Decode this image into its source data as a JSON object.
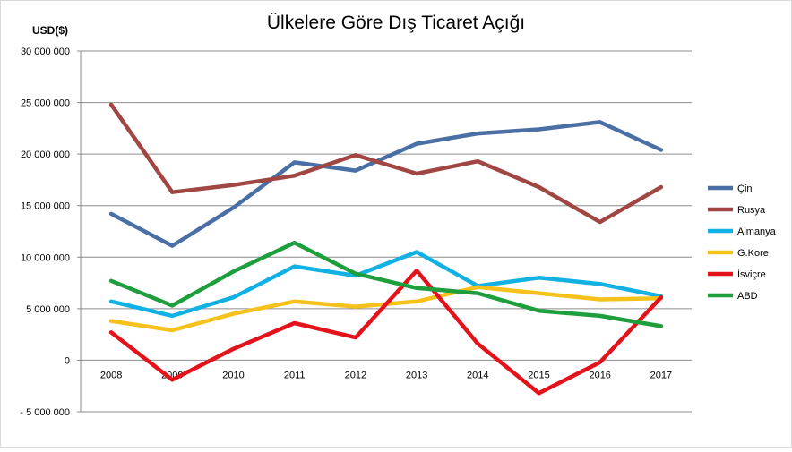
{
  "chart_data": {
    "type": "line",
    "title": "Ülkelere Göre Dış Ticaret Açığı",
    "ylabel": "USD($)",
    "xlabel": "",
    "ylim": [
      -5000000,
      30000000
    ],
    "ytick_values": [
      30000000,
      25000000,
      20000000,
      15000000,
      10000000,
      5000000,
      0,
      -5000000
    ],
    "ytick_labels": [
      "30 000 000",
      "25 000 000",
      "20 000 000",
      "15 000 000",
      "10 000 000",
      "5 000 000",
      "0",
      "- 5 000 000"
    ],
    "categories": [
      "2008",
      "2009",
      "2010",
      "2011",
      "2012",
      "2013",
      "2014",
      "2015",
      "2016",
      "2017"
    ],
    "grid": true,
    "legend_position": "right",
    "series": [
      {
        "name": "Çin",
        "color": "#4a6fa5",
        "values": [
          14200000,
          11100000,
          14800000,
          19200000,
          18400000,
          21000000,
          22000000,
          22400000,
          23100000,
          20400000
        ]
      },
      {
        "name": "Rusya",
        "color": "#a04743",
        "values": [
          24800000,
          16300000,
          17000000,
          17900000,
          19900000,
          18100000,
          19300000,
          16800000,
          13400000,
          16800000
        ]
      },
      {
        "name": "Almanya",
        "color": "#12b1e3",
        "values": [
          5700000,
          4300000,
          6100000,
          9100000,
          8200000,
          10500000,
          7200000,
          8000000,
          7400000,
          6200000
        ]
      },
      {
        "name": "G.Kore",
        "color": "#f5c21b",
        "values": [
          3800000,
          2900000,
          4500000,
          5700000,
          5200000,
          5700000,
          7100000,
          6500000,
          5900000,
          6000000
        ]
      },
      {
        "name": "İsviçre",
        "color": "#e4121a",
        "values": [
          2700000,
          -1900000,
          1100000,
          3600000,
          2200000,
          8700000,
          1600000,
          -3200000,
          -200000,
          6100000
        ]
      },
      {
        "name": "ABD",
        "color": "#1f9e3e",
        "values": [
          7700000,
          5300000,
          8600000,
          11400000,
          8400000,
          7000000,
          6500000,
          4800000,
          4300000,
          3300000
        ]
      }
    ]
  }
}
